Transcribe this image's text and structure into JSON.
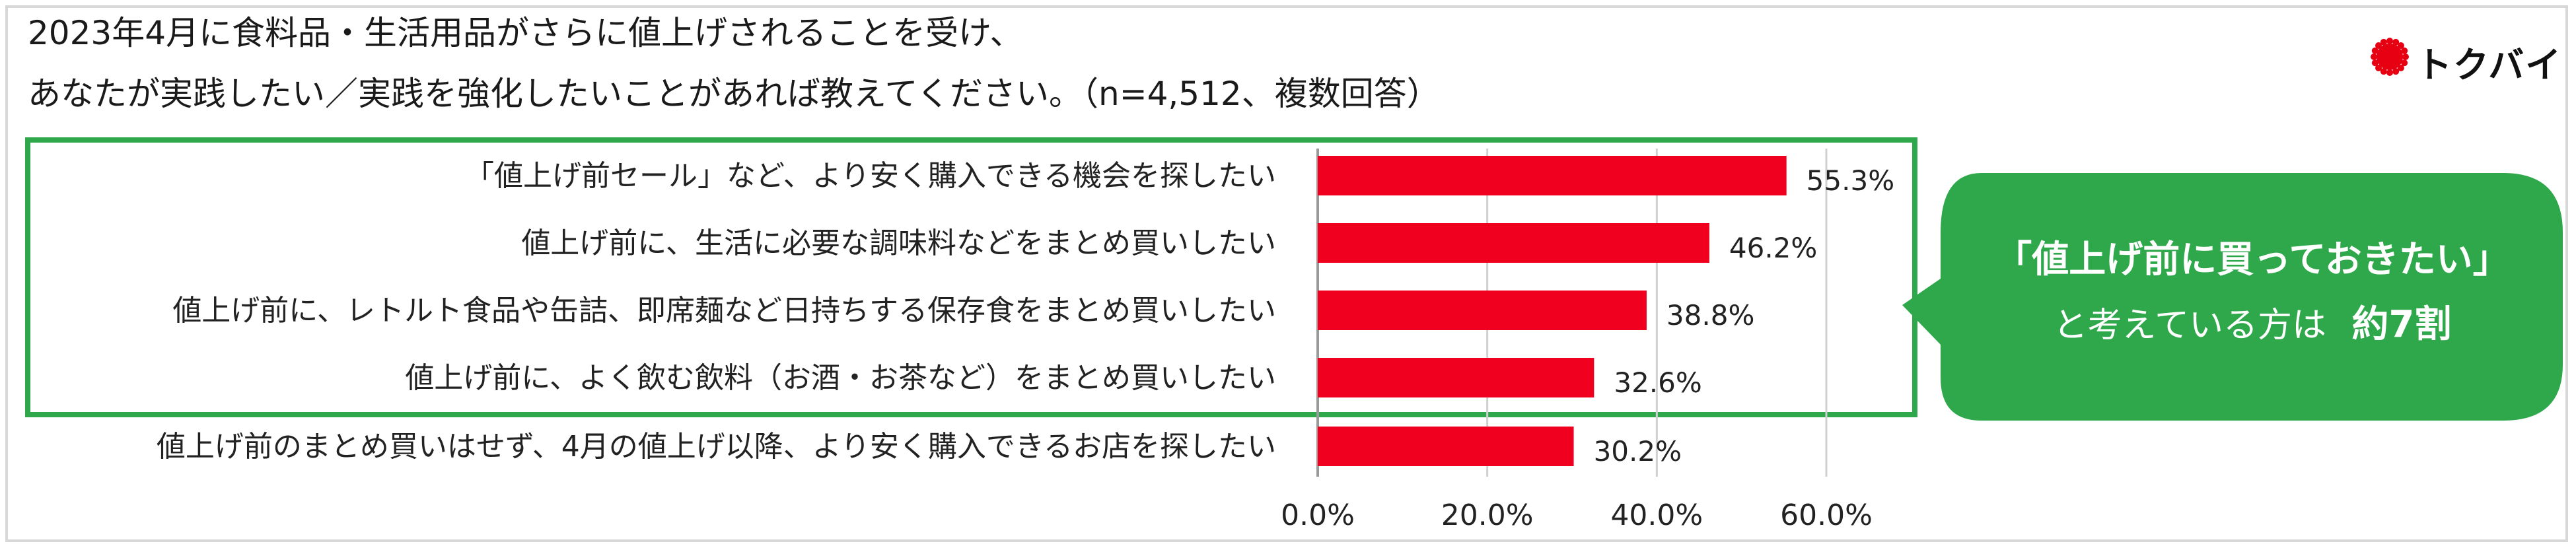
{
  "title": {
    "line1": "2023年4月に食料品・生活用品がさらに値上げされることを受け、",
    "line2": "あなたが実践したい／実践を強化したいことがあれば教えてください。（n=4,512、複数回答）"
  },
  "logo": {
    "text": "トクバイ",
    "dot_color": "#e60012"
  },
  "callout": {
    "line1": "「値上げ前に買っておきたい」",
    "line2_prefix": "と考えている方は",
    "line2_emphasis": "約7割",
    "bg_color": "#2ea84a"
  },
  "colors": {
    "bar": "#f0001e",
    "highlight": "#2ea84a",
    "grid": "#d0d0d0"
  },
  "chart_data": {
    "type": "bar",
    "orientation": "horizontal",
    "categories": [
      "「値上げ前セール」など、より安く購入できる機会を探したい",
      "値上げ前に、生活に必要な調味料などをまとめ買いしたい",
      "値上げ前に、レトルト食品や缶詰、即席麺など日持ちする保存食をまとめ買いしたい",
      "値上げ前に、よく飲む飲料（お酒・お茶など）をまとめ買いしたい",
      "値上げ前のまとめ買いはせず、4月の値上げ以降、より安く購入できるお店を探したい"
    ],
    "values": [
      55.3,
      46.2,
      38.8,
      32.6,
      30.2
    ],
    "data_labels": [
      "55.3%",
      "46.2%",
      "38.8%",
      "32.6%",
      "30.2%"
    ],
    "xlim": [
      0,
      60
    ],
    "xticks": [
      0,
      20,
      40,
      60
    ],
    "xtick_labels": [
      "0.0%",
      "20.0%",
      "40.0%",
      "60.0%"
    ],
    "grid": true,
    "highlighted_categories": [
      0,
      1,
      2,
      3
    ]
  }
}
